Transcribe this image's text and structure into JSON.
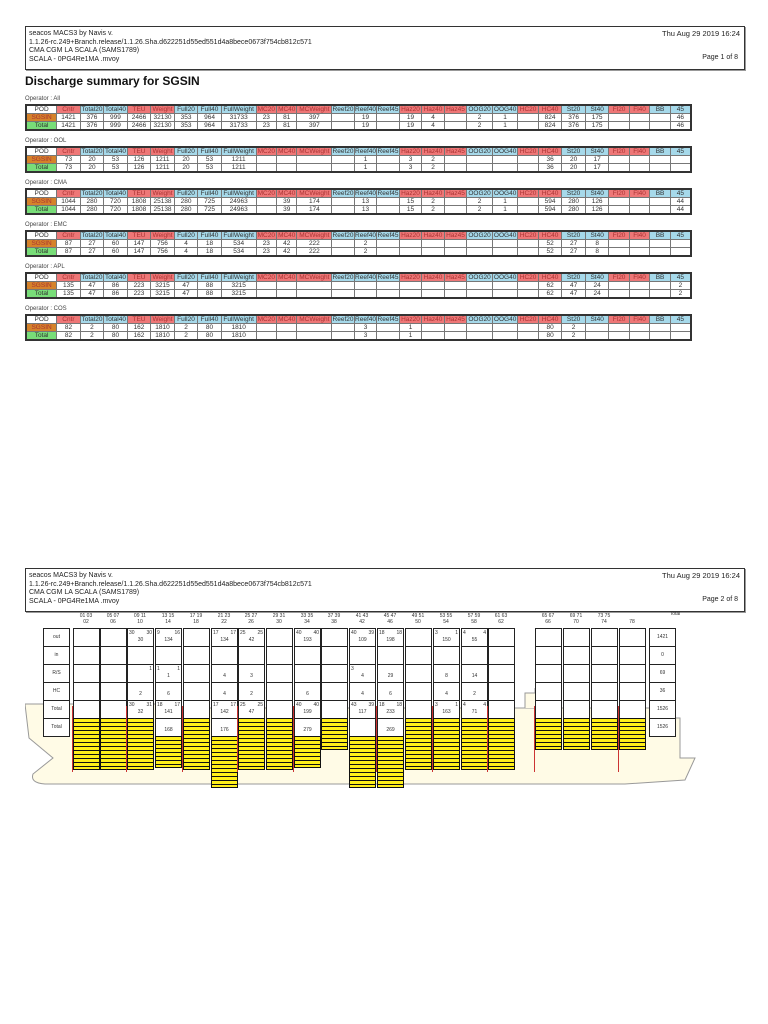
{
  "pages": [
    {
      "header": {
        "line1": "seacos MACS3 by Navis v.",
        "line2": "1.1.26-rc.249+Branch.release/1.1.26.Sha.d622251d55ed551d4a8bece0673f754cb812c571",
        "line3": "CMA CGM LA SCALA (SAMS1789)",
        "line4": "SCALA - 0PG4Re1MA .mvoy",
        "datetime": "Thu Aug 29 2019 16:24",
        "page": "Page 1 of 8"
      },
      "title": "Discharge summary for SGSIN"
    },
    {
      "header": {
        "line1": "seacos MACS3 by Navis v.",
        "line2": "1.1.26-rc.249+Branch.release/1.1.26.Sha.d622251d55ed551d4a8bece0673f754cb812c571",
        "line3": "CMA CGM LA SCALA (SAMS1789)",
        "line4": "SCALA - 0PG4Re1MA .mvoy",
        "datetime": "Thu Aug 29 2019 16:24",
        "page": "Page 2 of 8"
      }
    }
  ],
  "columns": [
    {
      "label": "POD",
      "color": "white"
    },
    {
      "label": "Cntr",
      "color": "red"
    },
    {
      "label": "Total20",
      "color": "blue"
    },
    {
      "label": "Total40",
      "color": "blue"
    },
    {
      "label": "TEU",
      "color": "red"
    },
    {
      "label": "Weight",
      "color": "red"
    },
    {
      "label": "Full20",
      "color": "blue"
    },
    {
      "label": "Full40",
      "color": "blue"
    },
    {
      "label": "FullWeight",
      "color": "blue"
    },
    {
      "label": "MC20",
      "color": "red"
    },
    {
      "label": "MC40",
      "color": "red"
    },
    {
      "label": "MCWeight",
      "color": "red"
    },
    {
      "label": "Reef20",
      "color": "blue"
    },
    {
      "label": "Reef40",
      "color": "blue"
    },
    {
      "label": "Reef45",
      "color": "blue"
    },
    {
      "label": "Haz20",
      "color": "red"
    },
    {
      "label": "Haz40",
      "color": "red"
    },
    {
      "label": "Haz45",
      "color": "red"
    },
    {
      "label": "OOG20",
      "color": "blue"
    },
    {
      "label": "OOG40",
      "color": "blue"
    },
    {
      "label": "HC20",
      "color": "red"
    },
    {
      "label": "HC40",
      "color": "red"
    },
    {
      "label": "St20",
      "color": "blue"
    },
    {
      "label": "St40",
      "color": "blue"
    },
    {
      "label": "Fl20",
      "color": "red"
    },
    {
      "label": "Fl40",
      "color": "red"
    },
    {
      "label": "BB",
      "color": "blue"
    },
    {
      "label": "45",
      "color": "blue"
    }
  ],
  "operators": [
    {
      "label": "Operator : All",
      "rows": [
        [
          "SGSIN",
          "1421",
          "376",
          "999",
          "2466",
          "32130",
          "353",
          "964",
          "31733",
          "23",
          "81",
          "397",
          "",
          "19",
          "",
          "19",
          "4",
          "",
          "2",
          "1",
          "",
          "824",
          "376",
          "175",
          "",
          "",
          "",
          "46"
        ],
        [
          "Total",
          "1421",
          "376",
          "999",
          "2466",
          "32130",
          "353",
          "964",
          "31733",
          "23",
          "81",
          "397",
          "",
          "19",
          "",
          "19",
          "4",
          "",
          "2",
          "1",
          "",
          "824",
          "376",
          "175",
          "",
          "",
          "",
          "46"
        ]
      ]
    },
    {
      "label": "Operator : OOL",
      "rows": [
        [
          "SGSIN",
          "73",
          "20",
          "53",
          "126",
          "1211",
          "20",
          "53",
          "1211",
          "",
          "",
          "",
          "",
          "1",
          "",
          "3",
          "2",
          "",
          "",
          "",
          "",
          "36",
          "20",
          "17",
          "",
          "",
          "",
          ""
        ],
        [
          "Total",
          "73",
          "20",
          "53",
          "126",
          "1211",
          "20",
          "53",
          "1211",
          "",
          "",
          "",
          "",
          "1",
          "",
          "3",
          "2",
          "",
          "",
          "",
          "",
          "36",
          "20",
          "17",
          "",
          "",
          "",
          ""
        ]
      ]
    },
    {
      "label": "Operator : CMA",
      "rows": [
        [
          "SGSIN",
          "1044",
          "280",
          "720",
          "1808",
          "25138",
          "280",
          "725",
          "24963",
          "",
          "39",
          "174",
          "",
          "13",
          "",
          "15",
          "2",
          "",
          "2",
          "1",
          "",
          "594",
          "280",
          "126",
          "",
          "",
          "",
          "44"
        ],
        [
          "Total",
          "1044",
          "280",
          "720",
          "1808",
          "25138",
          "280",
          "725",
          "24963",
          "",
          "39",
          "174",
          "",
          "13",
          "",
          "15",
          "2",
          "",
          "2",
          "1",
          "",
          "594",
          "280",
          "126",
          "",
          "",
          "",
          "44"
        ]
      ]
    },
    {
      "label": "Operator : EMC",
      "rows": [
        [
          "SGSIN",
          "87",
          "27",
          "60",
          "147",
          "756",
          "4",
          "18",
          "534",
          "23",
          "42",
          "222",
          "",
          "2",
          "",
          "",
          "",
          "",
          "",
          "",
          "",
          "52",
          "27",
          "8",
          "",
          "",
          "",
          ""
        ],
        [
          "Total",
          "87",
          "27",
          "60",
          "147",
          "756",
          "4",
          "18",
          "534",
          "23",
          "42",
          "222",
          "",
          "2",
          "",
          "",
          "",
          "",
          "",
          "",
          "",
          "52",
          "27",
          "8",
          "",
          "",
          "",
          ""
        ]
      ]
    },
    {
      "label": "Operator : APL",
      "rows": [
        [
          "SGSIN",
          "135",
          "47",
          "86",
          "223",
          "3215",
          "47",
          "88",
          "3215",
          "",
          "",
          "",
          "",
          "",
          "",
          "",
          "",
          "",
          "",
          "",
          "",
          "62",
          "47",
          "24",
          "",
          "",
          "",
          "2"
        ],
        [
          "Total",
          "135",
          "47",
          "86",
          "223",
          "3215",
          "47",
          "88",
          "3215",
          "",
          "",
          "",
          "",
          "",
          "",
          "",
          "",
          "",
          "",
          "",
          "",
          "62",
          "47",
          "24",
          "",
          "",
          "",
          "2"
        ]
      ]
    },
    {
      "label": "Operator : COS",
      "rows": [
        [
          "SGSIN",
          "82",
          "2",
          "80",
          "162",
          "1810",
          "2",
          "80",
          "1810",
          "",
          "",
          "",
          "",
          "3",
          "",
          "1",
          "",
          "",
          "",
          "",
          "",
          "80",
          "2",
          "",
          "",
          "",
          "",
          ""
        ],
        [
          "Total",
          "82",
          "2",
          "80",
          "162",
          "1810",
          "2",
          "80",
          "1810",
          "",
          "",
          "",
          "",
          "3",
          "",
          "1",
          "",
          "",
          "",
          "",
          "",
          "80",
          "2",
          "",
          "",
          "",
          "",
          ""
        ]
      ]
    }
  ],
  "bay_plan": {
    "row_labels": [
      "out",
      "in",
      "R/S",
      "HC",
      "Total",
      "Total"
    ],
    "total_header": "Total",
    "totals": [
      "1421",
      "0",
      "69",
      "36",
      "1526",
      "1526"
    ],
    "bays": [
      {
        "top": "01  03",
        "bot": "02",
        "cells": [
          [
            "",
            "",
            ""
          ],
          [
            "",
            "",
            ""
          ],
          [
            "",
            "",
            ""
          ],
          [
            "",
            "",
            ""
          ],
          [
            "",
            "",
            ""
          ],
          [
            "",
            "",
            ""
          ]
        ]
      },
      {
        "top": "05  07",
        "bot": "06",
        "cells": [
          [
            "",
            "",
            ""
          ],
          [
            "",
            "",
            ""
          ],
          [
            "",
            "",
            ""
          ],
          [
            "",
            "",
            ""
          ],
          [
            "",
            "",
            ""
          ],
          [
            "",
            "",
            ""
          ]
        ]
      },
      {
        "top": "09  11",
        "bot": "10",
        "cells": [
          [
            "30",
            "30",
            "30"
          ],
          [
            "",
            "",
            ""
          ],
          [
            "",
            "1",
            ""
          ],
          [
            "",
            "",
            "2"
          ],
          [
            "30",
            "31",
            "32"
          ],
          [
            "",
            "",
            ""
          ]
        ]
      },
      {
        "top": "13  15",
        "bot": "14",
        "cells": [
          [
            "9",
            "16",
            "134"
          ],
          [
            "",
            "",
            ""
          ],
          [
            "1",
            "1",
            "1"
          ],
          [
            "",
            "",
            "6"
          ],
          [
            "18",
            "17",
            "141"
          ],
          [
            "",
            "",
            "168"
          ]
        ]
      },
      {
        "top": "17  19",
        "bot": "18",
        "cells": [
          [
            "",
            "",
            ""
          ],
          [
            "",
            "",
            ""
          ],
          [
            "",
            "",
            ""
          ],
          [
            "",
            "",
            ""
          ],
          [
            "",
            "",
            ""
          ],
          [
            "",
            "",
            ""
          ]
        ]
      },
      {
        "top": "21  23",
        "bot": "22",
        "cells": [
          [
            "17",
            "17",
            "134"
          ],
          [
            "",
            "",
            ""
          ],
          [
            "",
            "",
            "4"
          ],
          [
            "",
            "",
            "4"
          ],
          [
            "17",
            "17",
            "142"
          ],
          [
            "",
            "",
            "176"
          ]
        ]
      },
      {
        "top": "25  27",
        "bot": "26",
        "cells": [
          [
            "25",
            "25",
            "42"
          ],
          [
            "",
            "",
            ""
          ],
          [
            "",
            "",
            "3"
          ],
          [
            "",
            "",
            "2"
          ],
          [
            "25",
            "25",
            "47"
          ],
          [
            "",
            "",
            ""
          ]
        ]
      },
      {
        "top": "29  31",
        "bot": "30",
        "cells": [
          [
            "",
            "",
            ""
          ],
          [
            "",
            "",
            ""
          ],
          [
            "",
            "",
            ""
          ],
          [
            "",
            "",
            ""
          ],
          [
            "",
            "",
            ""
          ],
          [
            "",
            "",
            ""
          ]
        ]
      },
      {
        "top": "33  35",
        "bot": "34",
        "cells": [
          [
            "40",
            "40",
            "193"
          ],
          [
            "",
            "",
            ""
          ],
          [
            "",
            "",
            ""
          ],
          [
            "",
            "",
            "6"
          ],
          [
            "40",
            "40",
            "199"
          ],
          [
            "",
            "",
            "279"
          ]
        ]
      },
      {
        "top": "37  39",
        "bot": "38",
        "cells": [
          [
            "",
            "",
            ""
          ],
          [
            "",
            "",
            ""
          ],
          [
            "",
            "",
            ""
          ],
          [
            "",
            "",
            ""
          ],
          [
            "",
            "",
            ""
          ],
          [
            "",
            "",
            ""
          ]
        ]
      },
      {
        "top": "41  43",
        "bot": "42",
        "cells": [
          [
            "40",
            "39",
            "109"
          ],
          [
            "",
            "",
            ""
          ],
          [
            "3",
            "",
            "4"
          ],
          [
            "",
            "",
            "4"
          ],
          [
            "43",
            "39",
            "117"
          ],
          [
            "",
            "",
            ""
          ]
        ]
      },
      {
        "top": "45  47",
        "bot": "46",
        "cells": [
          [
            "18",
            "18",
            "198"
          ],
          [
            "",
            "",
            ""
          ],
          [
            "",
            "",
            "29"
          ],
          [
            "",
            "",
            "6"
          ],
          [
            "18",
            "18",
            "233"
          ],
          [
            "",
            "",
            "269"
          ]
        ]
      },
      {
        "top": "49  51",
        "bot": "50",
        "cells": [
          [
            "",
            "",
            ""
          ],
          [
            "",
            "",
            ""
          ],
          [
            "",
            "",
            ""
          ],
          [
            "",
            "",
            ""
          ],
          [
            "",
            "",
            ""
          ],
          [
            "",
            "",
            ""
          ]
        ]
      },
      {
        "top": "53  55",
        "bot": "54",
        "cells": [
          [
            "3",
            "1",
            "150"
          ],
          [
            "",
            "",
            ""
          ],
          [
            "",
            "",
            "8"
          ],
          [
            "",
            "",
            "4"
          ],
          [
            "3",
            "1",
            "163"
          ],
          [
            "",
            "",
            "166"
          ]
        ]
      },
      {
        "top": "57  59",
        "bot": "58",
        "cells": [
          [
            "4",
            "4",
            "55"
          ],
          [
            "",
            "",
            ""
          ],
          [
            "",
            "",
            "14"
          ],
          [
            "",
            "",
            "2"
          ],
          [
            "4",
            "4",
            "71"
          ],
          [
            "",
            "",
            "79"
          ]
        ]
      },
      {
        "top": "61  63",
        "bot": "62",
        "cells": [
          [
            "",
            "",
            ""
          ],
          [
            "",
            "",
            ""
          ],
          [
            "",
            "",
            ""
          ],
          [
            "",
            "",
            ""
          ],
          [
            "",
            "",
            ""
          ],
          [
            "",
            "",
            ""
          ]
        ]
      },
      {
        "top": "65  67",
        "bot": "66",
        "cells": [
          [
            "",
            "",
            ""
          ],
          [
            "",
            "",
            ""
          ],
          [
            "",
            "",
            ""
          ],
          [
            "",
            "",
            ""
          ],
          [
            "",
            "",
            ""
          ],
          [
            "",
            "",
            ""
          ]
        ]
      },
      {
        "top": "69  71",
        "bot": "70",
        "cells": [
          [
            "",
            "",
            ""
          ],
          [
            "",
            "",
            ""
          ],
          [
            "",
            "",
            ""
          ],
          [
            "",
            "",
            ""
          ],
          [
            "",
            "",
            ""
          ],
          [
            "",
            "",
            ""
          ]
        ]
      },
      {
        "top": "73  75",
        "bot": "74",
        "cells": [
          [
            "",
            "",
            ""
          ],
          [
            "",
            "",
            ""
          ],
          [
            "",
            "",
            ""
          ],
          [
            "",
            "",
            ""
          ],
          [
            "",
            "",
            ""
          ],
          [
            "",
            "",
            ""
          ]
        ]
      },
      {
        "top": "",
        "bot": "78",
        "cells": [
          [
            "",
            "",
            ""
          ],
          [
            "",
            "",
            ""
          ],
          [
            "",
            "",
            ""
          ],
          [
            "",
            "",
            ""
          ],
          [
            "",
            "",
            ""
          ],
          [
            "",
            "",
            ""
          ]
        ]
      }
    ]
  }
}
